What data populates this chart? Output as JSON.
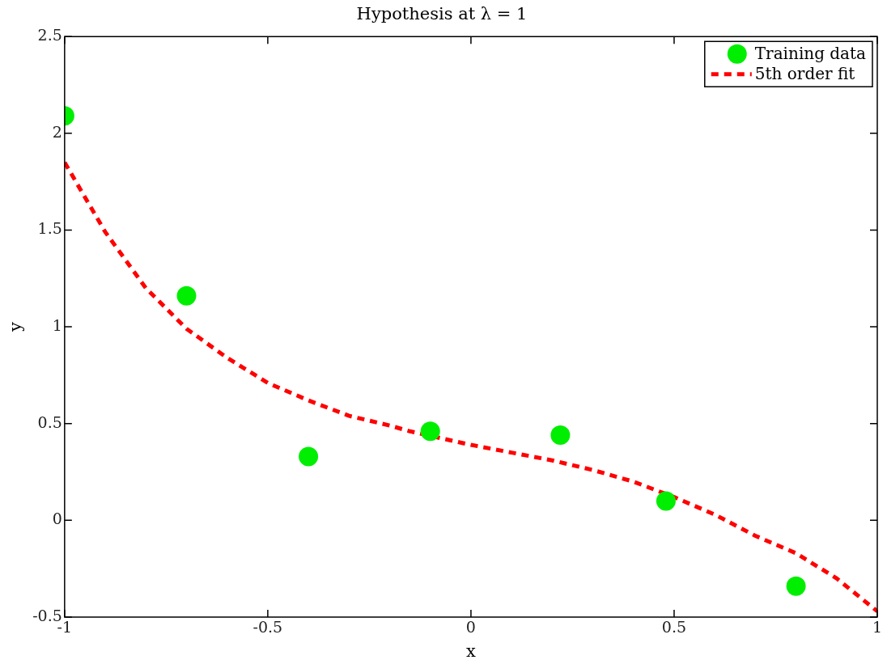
{
  "chart_data": {
    "type": "scatter",
    "title": "Hypothesis at λ = 1",
    "xlabel": "x",
    "ylabel": "y",
    "xlim": [
      -1,
      1
    ],
    "xticks": [
      -1,
      -0.5,
      0,
      0.5,
      1
    ],
    "ylim": [
      -0.5,
      2.5
    ],
    "yticks": [
      -0.5,
      0,
      0.5,
      1,
      1.5,
      2,
      2.5
    ],
    "grid": false,
    "legend": "top right",
    "line_style": "dashed",
    "series": [
      {
        "name": "Training data",
        "marker": "circle",
        "color": "#00ee00",
        "x": [
          -1.0,
          -0.7,
          -0.4,
          -0.1,
          0.22,
          0.48,
          0.8
        ],
        "values": [
          2.09,
          1.16,
          0.33,
          0.46,
          0.44,
          0.1,
          -0.34
        ]
      },
      {
        "name": "5th order fit",
        "type": "line",
        "marker": "none",
        "color": "#ff0000",
        "x": [
          -1,
          -0.9,
          -0.8,
          -0.7,
          -0.6,
          -0.5,
          -0.4,
          -0.3,
          -0.2,
          -0.15,
          0,
          0.1,
          0.2,
          0.3,
          0.4,
          0.5,
          0.6,
          0.7,
          0.8,
          0.9,
          1
        ],
        "values": [
          1.85,
          1.49,
          1.2,
          0.99,
          0.84,
          0.71,
          0.62,
          0.54,
          0.49,
          0.46,
          0.39,
          0.35,
          0.31,
          0.26,
          0.2,
          0.12,
          0.03,
          -0.08,
          -0.17,
          -0.3,
          -0.47
        ]
      }
    ]
  }
}
